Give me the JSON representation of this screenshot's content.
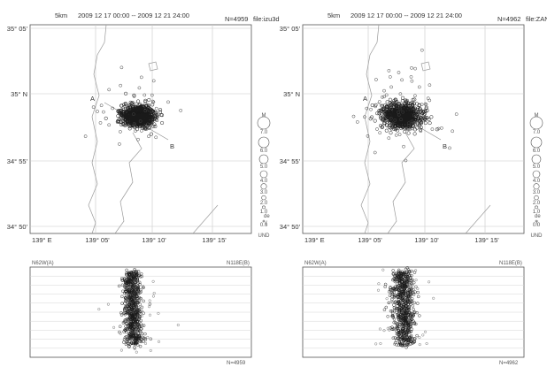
{
  "chart_data": [
    {
      "type": "scatter",
      "scale_label": "5km",
      "period": "2009 12 17 00:00  --  2009 12 21 24:00",
      "count_label": "N=4959",
      "file_label": "file:izu3d",
      "lat_ticks": [
        "35° 05'",
        "35° N",
        "34° 55'",
        "34° 50'"
      ],
      "lon_ticks": [
        "139° E",
        "139° 05'",
        "139° 10'",
        "139° 15'"
      ],
      "xlim": [
        139.0,
        139.3
      ],
      "ylim": [
        34.82,
        35.09
      ],
      "cross_section_labels": [
        "A",
        "B"
      ],
      "cluster_center": {
        "lon": 139.125,
        "lat": 34.98
      },
      "magnitude_legend": [
        "M",
        "7.0",
        "6.0",
        "5.0",
        "4.0",
        "3.0",
        "2.0",
        "1.0",
        "0.0",
        "UND"
      ],
      "depth_legend_fragments": [
        "de",
        "("
      ],
      "section": {
        "left_label": "N62W(A)",
        "right_label": "N118E(B)",
        "bottom_left_label": "",
        "bottom_right_label": "N=4959"
      }
    },
    {
      "type": "scatter",
      "scale_label": "5km",
      "period": "2009 12 17 00:00  --  2009 12 21 24:00",
      "count_label": "N=4962",
      "file_label": "file:ZANTI",
      "lat_ticks": [
        "35° 05'",
        "35° N",
        "34° 55'",
        "34° 50'"
      ],
      "lon_ticks": [
        "139° E",
        "139° 05'",
        "139° 10'",
        "139° 15'"
      ],
      "xlim": [
        139.0,
        139.3
      ],
      "ylim": [
        34.82,
        35.09
      ],
      "cross_section_labels": [
        "A",
        "B"
      ],
      "cluster_center": {
        "lon": 139.11,
        "lat": 34.98
      },
      "magnitude_legend": [
        "M",
        "7.0",
        "6.0",
        "5.0",
        "4.0",
        "3.0",
        "2.0",
        "1.0",
        "0.0",
        "UND"
      ],
      "depth_legend_fragments": [
        "de",
        "("
      ],
      "section": {
        "left_label": "N62W(A)",
        "right_label": "N118E(B)",
        "bottom_left_label": "",
        "bottom_right_label": "N=4962"
      }
    }
  ],
  "colors": {
    "event_outline": "#1a1a1a",
    "coastline": "#9a9a9a",
    "grid": "#c8c8c8"
  }
}
